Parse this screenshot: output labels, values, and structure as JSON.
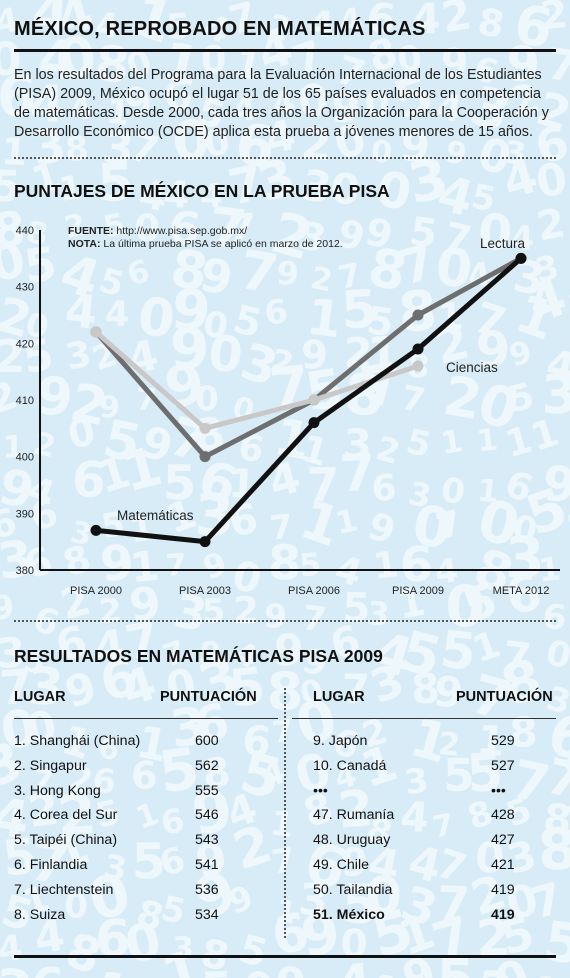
{
  "title": "MÉXICO, REPROBADO EN MATEMÁTICAS",
  "intro": "En los resultados del Programa para la Evaluación Internacional de los Estudiantes (PISA) 2009, México ocupó el lugar 51 de los 65 países evaluados en competencia de matemáticas. Desde 2000, cada tres años la Organización para la Cooperación y Desarrollo Económico (OCDE) aplica esta prueba a jóvenes menores de 15 años.",
  "chart_section_title": "PUNTAJES DE MÉXICO EN LA PRUEBA PISA",
  "source": {
    "label1": "FUENTE:",
    "text1": " http://www.pisa.sep.gob.mx/",
    "label2": "NOTA:",
    "text2": " La última prueba PISA se aplicó en marzo de 2012."
  },
  "chart_data": {
    "type": "line",
    "categories": [
      "PISA 2000",
      "PISA 2003",
      "PISA 2006",
      "PISA 2009",
      "META 2012"
    ],
    "ylim": [
      380,
      440
    ],
    "yticks": [
      380,
      390,
      400,
      410,
      420,
      430,
      440
    ],
    "series": [
      {
        "name": "Lectura",
        "color": "#6e6e6e",
        "values": [
          422,
          400,
          410,
          425,
          435
        ]
      },
      {
        "name": "Ciencias",
        "color": "#c8c8c8",
        "values": [
          422,
          405,
          410,
          416,
          null
        ]
      },
      {
        "name": "Matemáticas",
        "color": "#111111",
        "values": [
          387,
          385,
          406,
          419,
          435
        ]
      }
    ],
    "grid": false
  },
  "table_section_title": "RESULTADOS EN MATEMÁTICAS PISA 2009",
  "table": {
    "headers": {
      "place": "LUGAR",
      "score": "PUNTUACIÓN"
    },
    "left": [
      {
        "place": "1. Shanghái (China)",
        "score": "600"
      },
      {
        "place": "2. Singapur",
        "score": "562"
      },
      {
        "place": "3. Hong Kong",
        "score": "555"
      },
      {
        "place": "4. Corea del Sur",
        "score": "546"
      },
      {
        "place": "5. Taipéi (China)",
        "score": "543"
      },
      {
        "place": "6. Finlandia",
        "score": "541"
      },
      {
        "place": "7. Liechtenstein",
        "score": "536"
      },
      {
        "place": "8. Suiza",
        "score": "534"
      }
    ],
    "right": [
      {
        "place": "9. Japón",
        "score": "529"
      },
      {
        "place": "10. Canadá",
        "score": "527"
      },
      {
        "place": "•••",
        "score": "•••"
      },
      {
        "place": "47. Rumanía",
        "score": "428"
      },
      {
        "place": "48. Uruguay",
        "score": "427"
      },
      {
        "place": "49. Chile",
        "score": "421"
      },
      {
        "place": "50. Tailandia",
        "score": "419"
      },
      {
        "place": "51. México",
        "score": "419"
      }
    ]
  }
}
